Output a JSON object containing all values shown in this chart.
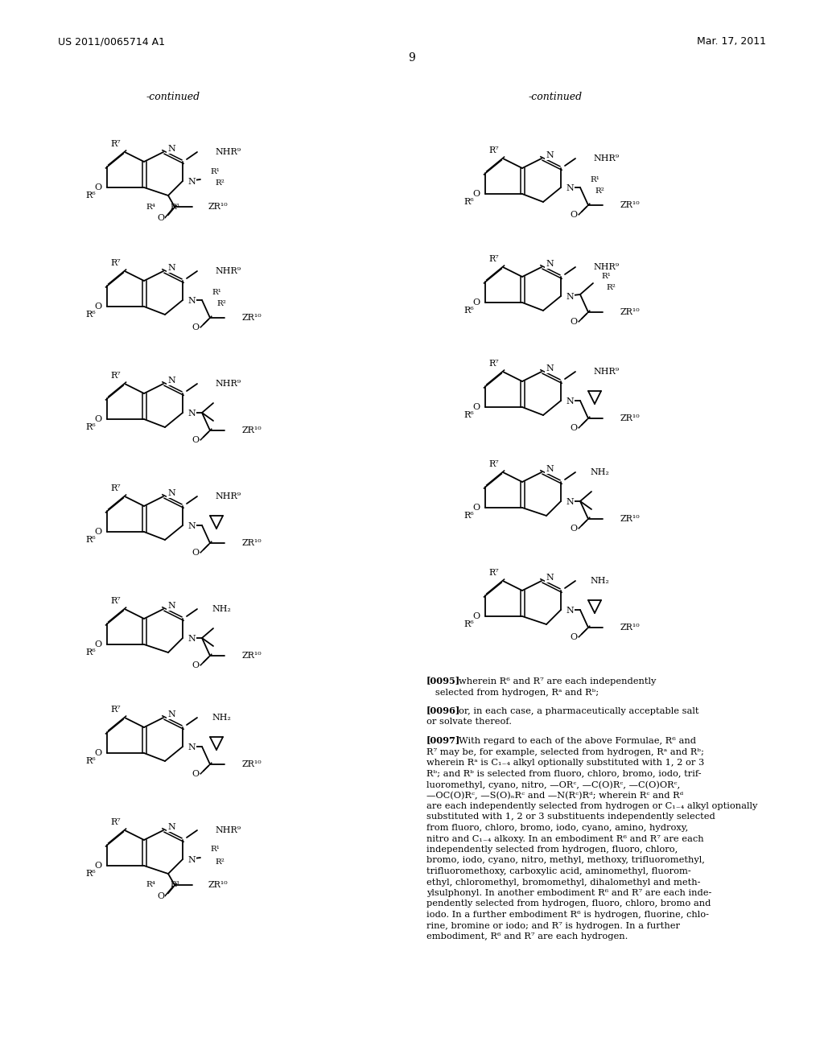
{
  "page_header_left": "US 2011/0065714 A1",
  "page_header_right": "Mar. 17, 2011",
  "page_number": "9",
  "bg": "#ffffff"
}
